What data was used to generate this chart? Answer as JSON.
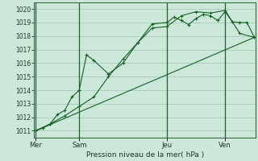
{
  "xlabel": "Pression niveau de la mer( hPa )",
  "bg_color": "#cce8da",
  "grid_color": "#aaccbb",
  "line_color": "#1a5c28",
  "ylim": [
    1010.5,
    1020.5
  ],
  "yticks": [
    1011,
    1012,
    1013,
    1014,
    1015,
    1016,
    1017,
    1018,
    1019,
    1020
  ],
  "xlim": [
    -0.05,
    7.55
  ],
  "day_positions": [
    0,
    1.5,
    4.5,
    6.5
  ],
  "day_labels": [
    "Mer",
    "Sam",
    "Jeu",
    "Ven"
  ],
  "vline_positions": [
    0,
    1.5,
    4.5,
    6.5
  ],
  "series1_x": [
    0,
    0.25,
    0.5,
    0.75,
    1.0,
    1.25,
    1.5,
    1.75,
    2.0,
    2.5,
    3.0,
    3.5,
    4.0,
    4.5,
    4.75,
    5.0,
    5.25,
    5.5,
    5.75,
    6.0,
    6.25,
    6.5,
    6.75,
    7.0,
    7.25,
    7.5
  ],
  "series1_y": [
    1011.0,
    1011.2,
    1011.5,
    1012.2,
    1012.5,
    1013.5,
    1014.0,
    1016.6,
    1016.2,
    1015.2,
    1016.0,
    1017.5,
    1018.9,
    1019.0,
    1019.4,
    1019.15,
    1018.85,
    1019.3,
    1019.6,
    1019.5,
    1019.15,
    1019.8,
    1019.05,
    1019.0,
    1019.0,
    1017.9
  ],
  "series2_x": [
    0,
    0.5,
    1.0,
    1.5,
    2.0,
    2.5,
    3.0,
    3.5,
    4.0,
    4.5,
    5.0,
    5.5,
    6.0,
    6.5,
    7.0,
    7.5
  ],
  "series2_y": [
    1011.0,
    1011.5,
    1012.1,
    1012.8,
    1013.5,
    1015.0,
    1016.3,
    1017.5,
    1018.6,
    1018.7,
    1019.5,
    1019.8,
    1019.7,
    1019.9,
    1018.2,
    1017.9
  ],
  "series3_x": [
    0,
    7.5
  ],
  "series3_y": [
    1011.0,
    1017.9
  ]
}
